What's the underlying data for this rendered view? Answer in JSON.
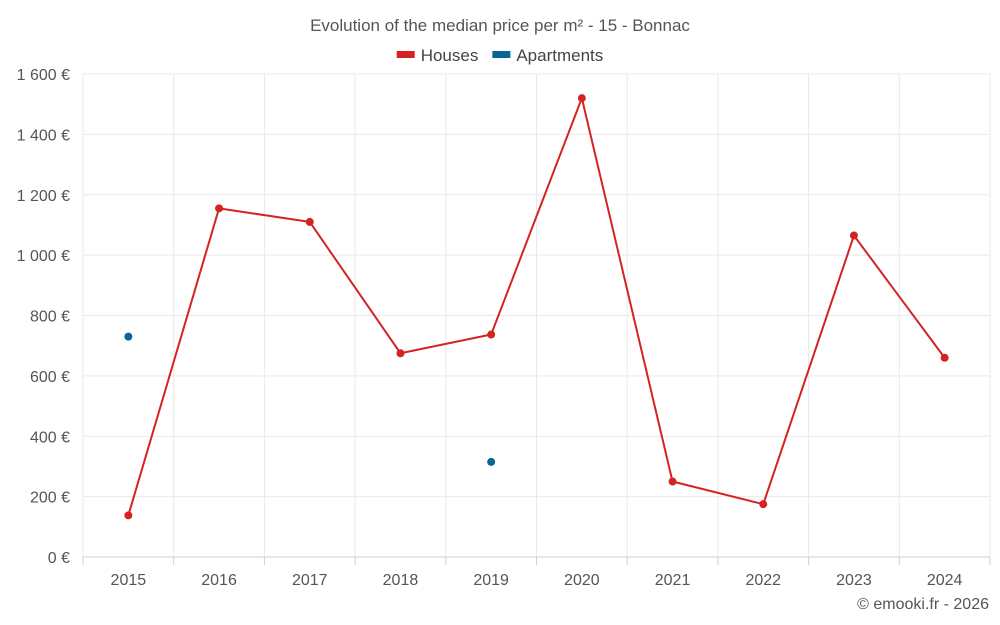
{
  "chart_data": {
    "type": "line",
    "title": "Evolution of the median price per m² - 15 - Bonnac",
    "xlabel": "",
    "ylabel": "",
    "categories": [
      "2015",
      "2016",
      "2017",
      "2018",
      "2019",
      "2020",
      "2021",
      "2022",
      "2023",
      "2024"
    ],
    "series": [
      {
        "name": "Houses",
        "color": "#d32323",
        "values": [
          138,
          1155,
          1110,
          675,
          737,
          1520,
          250,
          175,
          1065,
          660
        ]
      },
      {
        "name": "Apartments",
        "color": "#0a6496",
        "values": [
          730,
          null,
          null,
          null,
          315,
          null,
          null,
          null,
          null,
          null
        ]
      }
    ],
    "ylim": [
      0,
      1600
    ],
    "yticks": [
      0,
      200,
      400,
      600,
      800,
      1000,
      1200,
      1400,
      1600
    ],
    "ytick_labels": [
      "0 €",
      "200 €",
      "400 €",
      "600 €",
      "800 €",
      "1 000 €",
      "1 200 €",
      "1 400 €",
      "1 600 €"
    ],
    "grid": true,
    "legend_position": "top-center"
  },
  "credit": "© emooki.fr - 2026"
}
